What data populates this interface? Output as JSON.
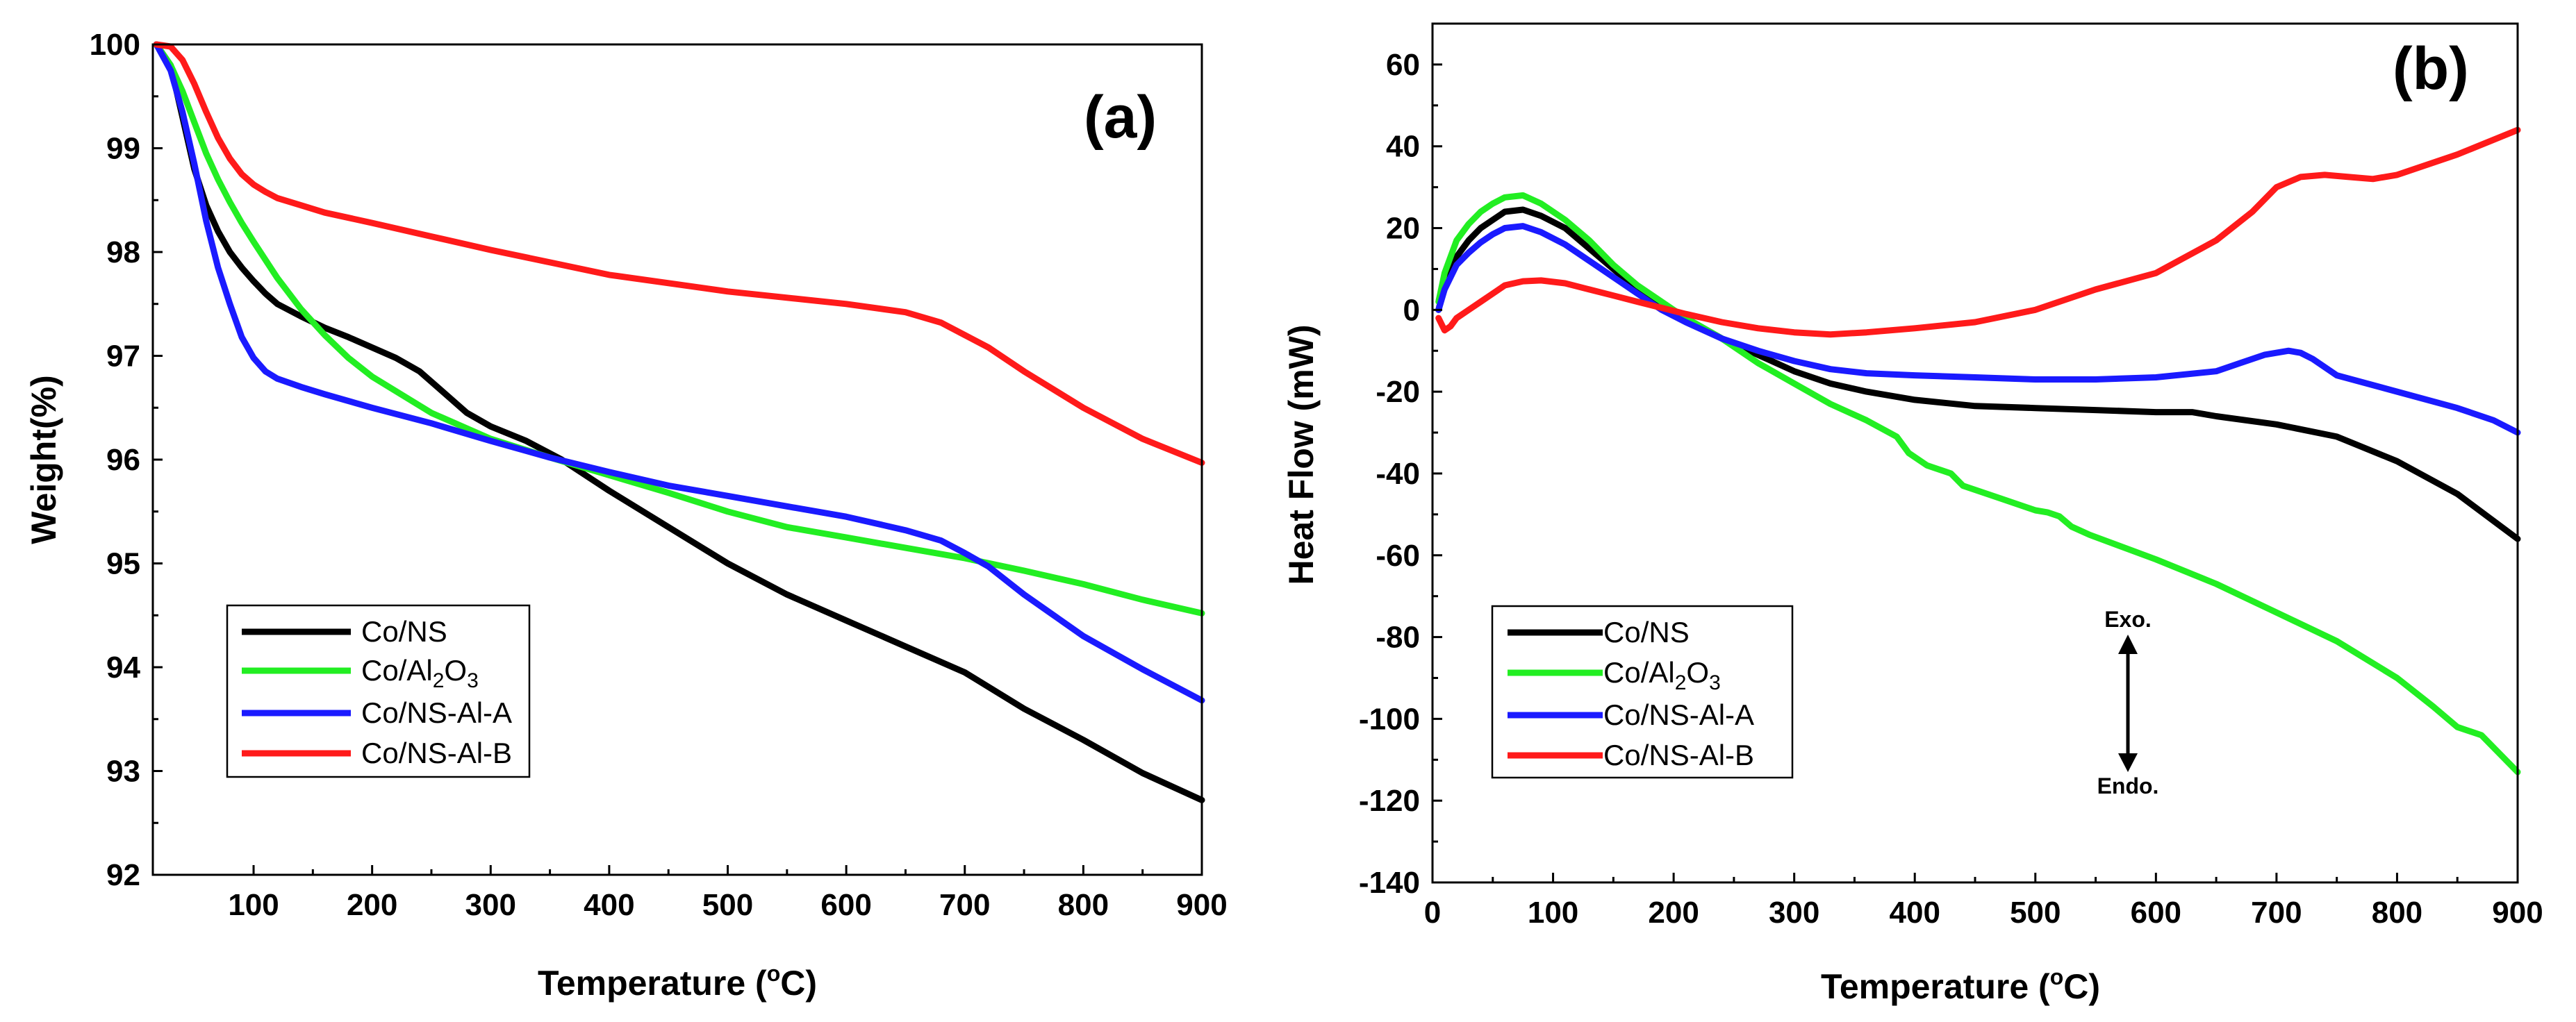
{
  "colors": {
    "Co/NS": "#000000",
    "Co/Al2O3": "#22ee22",
    "Co/NS-Al-A": "#1a1aff",
    "Co/NS-Al-B": "#ff1a1a"
  },
  "chart_data": [
    {
      "type": "line",
      "panel_label": "(a)",
      "title": "",
      "xlabel": "Temperature (°C)",
      "ylabel": "Weight(%)",
      "xlim": [
        15,
        900
      ],
      "ylim": [
        92,
        100
      ],
      "xticks": [
        100,
        200,
        300,
        400,
        500,
        600,
        700,
        800,
        900
      ],
      "yticks": [
        92,
        93,
        94,
        95,
        96,
        97,
        98,
        99,
        100
      ],
      "legend_position": "lower-left",
      "series": [
        {
          "name": "Co/NS",
          "label_main": "Co/NS",
          "label_sub": "",
          "label_tail": "",
          "label_sub2": "",
          "x": [
            18,
            30,
            40,
            50,
            60,
            70,
            80,
            90,
            100,
            110,
            120,
            140,
            160,
            180,
            200,
            220,
            240,
            260,
            280,
            300,
            330,
            360,
            400,
            450,
            500,
            550,
            600,
            650,
            700,
            750,
            800,
            850,
            900
          ],
          "y": [
            100,
            99.8,
            99.3,
            98.8,
            98.45,
            98.2,
            98.0,
            97.85,
            97.72,
            97.6,
            97.5,
            97.38,
            97.27,
            97.18,
            97.08,
            96.98,
            96.85,
            96.65,
            96.45,
            96.32,
            96.18,
            96.0,
            95.7,
            95.35,
            95.0,
            94.7,
            94.45,
            94.2,
            93.95,
            93.6,
            93.3,
            92.98,
            92.72
          ]
        },
        {
          "name": "Co/Al2O3",
          "label_main": "Co/Al",
          "label_sub": "2",
          "label_tail": "O",
          "label_sub2": "3",
          "x": [
            18,
            30,
            40,
            50,
            60,
            70,
            80,
            90,
            100,
            120,
            140,
            160,
            180,
            200,
            250,
            300,
            350,
            400,
            450,
            500,
            550,
            600,
            650,
            700,
            750,
            800,
            850,
            900
          ],
          "y": [
            100,
            99.8,
            99.55,
            99.25,
            98.95,
            98.7,
            98.48,
            98.28,
            98.1,
            97.75,
            97.45,
            97.2,
            96.98,
            96.8,
            96.45,
            96.2,
            96.02,
            95.85,
            95.68,
            95.5,
            95.35,
            95.25,
            95.15,
            95.05,
            94.93,
            94.8,
            94.65,
            94.52
          ]
        },
        {
          "name": "Co/NS-Al-A",
          "label_main": "Co/NS-Al-A",
          "label_sub": "",
          "label_tail": "",
          "label_sub2": "",
          "x": [
            18,
            30,
            40,
            50,
            60,
            70,
            80,
            90,
            100,
            110,
            120,
            140,
            160,
            200,
            250,
            300,
            350,
            400,
            450,
            500,
            550,
            600,
            650,
            680,
            700,
            720,
            750,
            800,
            850,
            900
          ],
          "y": [
            100,
            99.75,
            99.35,
            98.85,
            98.3,
            97.85,
            97.5,
            97.18,
            96.98,
            96.85,
            96.78,
            96.7,
            96.63,
            96.5,
            96.35,
            96.18,
            96.02,
            95.88,
            95.75,
            95.65,
            95.55,
            95.45,
            95.32,
            95.22,
            95.1,
            94.97,
            94.7,
            94.3,
            93.98,
            93.68
          ]
        },
        {
          "name": "Co/NS-Al-B",
          "label_main": "Co/NS-Al-B",
          "label_sub": "",
          "label_tail": "",
          "label_sub2": "",
          "x": [
            18,
            30,
            40,
            50,
            60,
            70,
            80,
            90,
            100,
            110,
            120,
            140,
            160,
            200,
            250,
            300,
            350,
            400,
            450,
            500,
            550,
            600,
            650,
            680,
            700,
            720,
            750,
            800,
            850,
            900
          ],
          "y": [
            100,
            99.98,
            99.85,
            99.62,
            99.35,
            99.1,
            98.9,
            98.75,
            98.65,
            98.58,
            98.52,
            98.45,
            98.38,
            98.28,
            98.15,
            98.02,
            97.9,
            97.78,
            97.7,
            97.62,
            97.56,
            97.5,
            97.42,
            97.32,
            97.2,
            97.08,
            96.85,
            96.5,
            96.2,
            95.97
          ]
        }
      ]
    },
    {
      "type": "line",
      "panel_label": "(b)",
      "title": "",
      "xlabel": "Temperature (°C)",
      "ylabel": "Heat Flow (mW)",
      "xlim": [
        0,
        900
      ],
      "ylim": [
        -140,
        70
      ],
      "xticks": [
        0,
        100,
        200,
        300,
        400,
        500,
        600,
        700,
        800,
        900
      ],
      "yticks": [
        -140,
        -120,
        -100,
        -80,
        -60,
        -40,
        -20,
        0,
        20,
        40,
        60
      ],
      "legend_position": "lower-left",
      "annotation_top": "Exo.",
      "annotation_bottom": "Endo.",
      "series": [
        {
          "name": "Co/NS",
          "label_main": "Co/NS",
          "label_sub": "",
          "label_tail": "",
          "label_sub2": "",
          "x": [
            5,
            10,
            20,
            30,
            40,
            50,
            60,
            75,
            90,
            110,
            130,
            150,
            170,
            190,
            210,
            240,
            270,
            300,
            330,
            360,
            400,
            450,
            500,
            550,
            600,
            630,
            650,
            700,
            750,
            800,
            850,
            900
          ],
          "y": [
            0,
            6,
            13,
            17,
            20,
            22,
            24,
            24.5,
            23,
            20,
            15,
            10,
            5,
            1,
            -2,
            -7,
            -11,
            -15,
            -18,
            -20,
            -22,
            -23.5,
            -24,
            -24.5,
            -25,
            -25,
            -26,
            -28,
            -31,
            -37,
            -45,
            -56
          ]
        },
        {
          "name": "Co/Al2O3",
          "label_main": "Co/Al",
          "label_sub": "2",
          "label_tail": "O",
          "label_sub2": "3",
          "x": [
            5,
            10,
            20,
            30,
            40,
            50,
            60,
            75,
            90,
            110,
            130,
            150,
            170,
            190,
            210,
            240,
            270,
            300,
            330,
            360,
            385,
            395,
            410,
            430,
            440,
            470,
            500,
            510,
            520,
            530,
            545,
            600,
            650,
            700,
            750,
            800,
            830,
            850,
            870,
            880,
            900
          ],
          "y": [
            2,
            9,
            17,
            21,
            24,
            26,
            27.5,
            28,
            26,
            22,
            17,
            11,
            6,
            2,
            -2,
            -7,
            -13,
            -18,
            -23,
            -27,
            -31,
            -35,
            -38,
            -40,
            -43,
            -46,
            -49,
            -49.5,
            -50.5,
            -53,
            -55,
            -61,
            -67,
            -74,
            -81,
            -90,
            -97,
            -102,
            -104,
            -107,
            -113
          ]
        },
        {
          "name": "Co/NS-Al-A",
          "label_main": "Co/NS-Al-A",
          "label_sub": "",
          "label_tail": "",
          "label_sub2": "",
          "x": [
            5,
            10,
            20,
            30,
            40,
            50,
            60,
            75,
            90,
            110,
            130,
            150,
            170,
            190,
            210,
            240,
            270,
            300,
            330,
            360,
            400,
            450,
            500,
            550,
            600,
            650,
            670,
            690,
            710,
            720,
            730,
            750,
            800,
            850,
            880,
            900
          ],
          "y": [
            0,
            5,
            11,
            14,
            16.5,
            18.5,
            20,
            20.5,
            19,
            16,
            12,
            8,
            4,
            0,
            -3,
            -7,
            -10,
            -12.5,
            -14.5,
            -15.5,
            -16,
            -16.5,
            -17,
            -17,
            -16.5,
            -15,
            -13,
            -11,
            -10,
            -10.5,
            -12,
            -16,
            -20,
            -24,
            -27,
            -30
          ]
        },
        {
          "name": "Co/NS-Al-B",
          "label_main": "Co/NS-Al-B",
          "label_sub": "",
          "label_tail": "",
          "label_sub2": "",
          "x": [
            5,
            10,
            15,
            20,
            30,
            40,
            50,
            60,
            75,
            90,
            110,
            130,
            150,
            170,
            190,
            210,
            240,
            270,
            300,
            330,
            360,
            400,
            450,
            500,
            550,
            600,
            650,
            680,
            700,
            720,
            740,
            760,
            780,
            800,
            850,
            900
          ],
          "y": [
            -2,
            -5,
            -4,
            -2,
            0,
            2,
            4,
            6,
            7,
            7.2,
            6.5,
            5,
            3.5,
            2,
            0.5,
            -1,
            -3,
            -4.5,
            -5.5,
            -6,
            -5.5,
            -4.5,
            -3,
            0,
            5,
            9,
            17,
            24,
            30,
            32.5,
            33,
            32.5,
            32,
            33,
            38,
            44
          ]
        }
      ]
    }
  ]
}
